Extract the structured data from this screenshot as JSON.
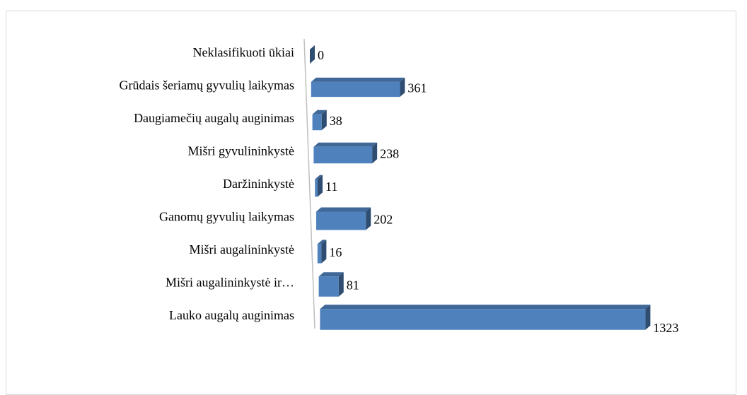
{
  "chart_data": {
    "type": "bar3d",
    "orientation": "horizontal",
    "categories": [
      "Neklasifikuoti ūkiai",
      "Grūdais šeriamų gyvulių laikymas",
      "Daugiamečių augalų auginimas",
      "Mišri gyvulininkystė",
      "Daržininkystė",
      "Ganomų gyvulių laikymas",
      "Mišri augalininkystė",
      "Mišri augalininkystė ir…",
      "Lauko augalų auginimas"
    ],
    "values": [
      0,
      361,
      38,
      238,
      11,
      202,
      16,
      81,
      1323
    ],
    "color": "#4f81bd"
  }
}
